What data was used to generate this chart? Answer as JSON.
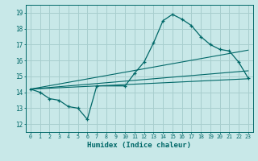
{
  "xlabel": "Humidex (Indice chaleur)",
  "ylabel": "",
  "background_color": "#c8e8e8",
  "grid_color": "#a8cece",
  "line_color": "#006868",
  "xlim": [
    -0.5,
    23.5
  ],
  "ylim": [
    11.5,
    19.5
  ],
  "xticks": [
    0,
    1,
    2,
    3,
    4,
    5,
    6,
    7,
    8,
    9,
    10,
    11,
    12,
    13,
    14,
    15,
    16,
    17,
    18,
    19,
    20,
    21,
    22,
    23
  ],
  "yticks": [
    12,
    13,
    14,
    15,
    16,
    17,
    18,
    19
  ],
  "series1_x": [
    0,
    1,
    2,
    3,
    4,
    5,
    6,
    7,
    10,
    11,
    12,
    13,
    14,
    15,
    16,
    17,
    18,
    19,
    20,
    21,
    22,
    23
  ],
  "series1_y": [
    14.2,
    14.0,
    13.6,
    13.5,
    13.1,
    13.0,
    12.3,
    14.4,
    14.4,
    15.2,
    15.9,
    17.1,
    18.5,
    18.9,
    18.6,
    18.2,
    17.5,
    17.0,
    16.7,
    16.6,
    15.9,
    14.9
  ],
  "trend1_x": [
    0,
    23
  ],
  "trend1_y": [
    14.2,
    14.85
  ],
  "trend2_x": [
    0,
    23
  ],
  "trend2_y": [
    14.2,
    15.35
  ],
  "trend3_x": [
    0,
    23
  ],
  "trend3_y": [
    14.2,
    16.65
  ]
}
